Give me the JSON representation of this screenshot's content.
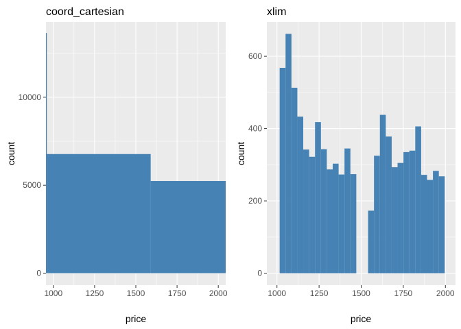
{
  "colors": {
    "bar": "#4682b4",
    "panel_bg": "#ebebeb",
    "grid": "#ffffff",
    "tick_text": "#4d4d4d",
    "text": "#000000"
  },
  "chart_data": [
    {
      "type": "bar",
      "histogram": true,
      "title": "coord_cartesian",
      "xlabel": "price",
      "ylabel": "count",
      "xlim": [
        955,
        2045
      ],
      "ylim": [
        -680,
        14280
      ],
      "xticks": [
        1000,
        1250,
        1500,
        1750,
        2000
      ],
      "xtick_labels": [
        "1000",
        "1250",
        "1500",
        "1750",
        "2000"
      ],
      "yticks": [
        0,
        5000,
        10000
      ],
      "ytick_labels": [
        "0",
        "5000",
        "10000"
      ],
      "grid": true,
      "bins": [
        {
          "x0": 700,
          "x1": 960,
          "value": 13650
        },
        {
          "x0": 960,
          "x1": 1590,
          "value": 6770
        },
        {
          "x0": 1590,
          "x1": 2200,
          "value": 5240
        }
      ]
    },
    {
      "type": "bar",
      "histogram": true,
      "title": "xlim",
      "xlabel": "price",
      "ylabel": "count",
      "xlim": [
        940,
        2060
      ],
      "ylim": [
        -33,
        695
      ],
      "xticks": [
        1000,
        1250,
        1500,
        1750,
        2000
      ],
      "xtick_labels": [
        "1000",
        "1250",
        "1500",
        "1750",
        "2000"
      ],
      "yticks": [
        0,
        200,
        400,
        600
      ],
      "ytick_labels": [
        "0",
        "200",
        "400",
        "600"
      ],
      "grid": true,
      "bins": [
        {
          "x0": 1016,
          "x1": 1051,
          "value": 568
        },
        {
          "x0": 1051,
          "x1": 1086,
          "value": 662
        },
        {
          "x0": 1086,
          "x1": 1121,
          "value": 513
        },
        {
          "x0": 1121,
          "x1": 1156,
          "value": 433
        },
        {
          "x0": 1156,
          "x1": 1191,
          "value": 342
        },
        {
          "x0": 1191,
          "x1": 1226,
          "value": 322
        },
        {
          "x0": 1226,
          "x1": 1261,
          "value": 418
        },
        {
          "x0": 1261,
          "x1": 1296,
          "value": 343
        },
        {
          "x0": 1296,
          "x1": 1331,
          "value": 287
        },
        {
          "x0": 1331,
          "x1": 1366,
          "value": 303
        },
        {
          "x0": 1366,
          "x1": 1401,
          "value": 273
        },
        {
          "x0": 1401,
          "x1": 1436,
          "value": 345
        },
        {
          "x0": 1436,
          "x1": 1471,
          "value": 274
        },
        {
          "x0": 1471,
          "x1": 1506,
          "value": 0
        },
        {
          "x0": 1506,
          "x1": 1541,
          "value": 0
        },
        {
          "x0": 1541,
          "x1": 1576,
          "value": 173
        },
        {
          "x0": 1576,
          "x1": 1611,
          "value": 325
        },
        {
          "x0": 1611,
          "x1": 1646,
          "value": 438
        },
        {
          "x0": 1646,
          "x1": 1681,
          "value": 378
        },
        {
          "x0": 1681,
          "x1": 1716,
          "value": 293
        },
        {
          "x0": 1716,
          "x1": 1751,
          "value": 305
        },
        {
          "x0": 1751,
          "x1": 1786,
          "value": 335
        },
        {
          "x0": 1786,
          "x1": 1821,
          "value": 339
        },
        {
          "x0": 1821,
          "x1": 1856,
          "value": 406
        },
        {
          "x0": 1856,
          "x1": 1891,
          "value": 272
        },
        {
          "x0": 1891,
          "x1": 1926,
          "value": 258
        },
        {
          "x0": 1926,
          "x1": 1961,
          "value": 283
        },
        {
          "x0": 1961,
          "x1": 1996,
          "value": 268
        }
      ]
    }
  ]
}
